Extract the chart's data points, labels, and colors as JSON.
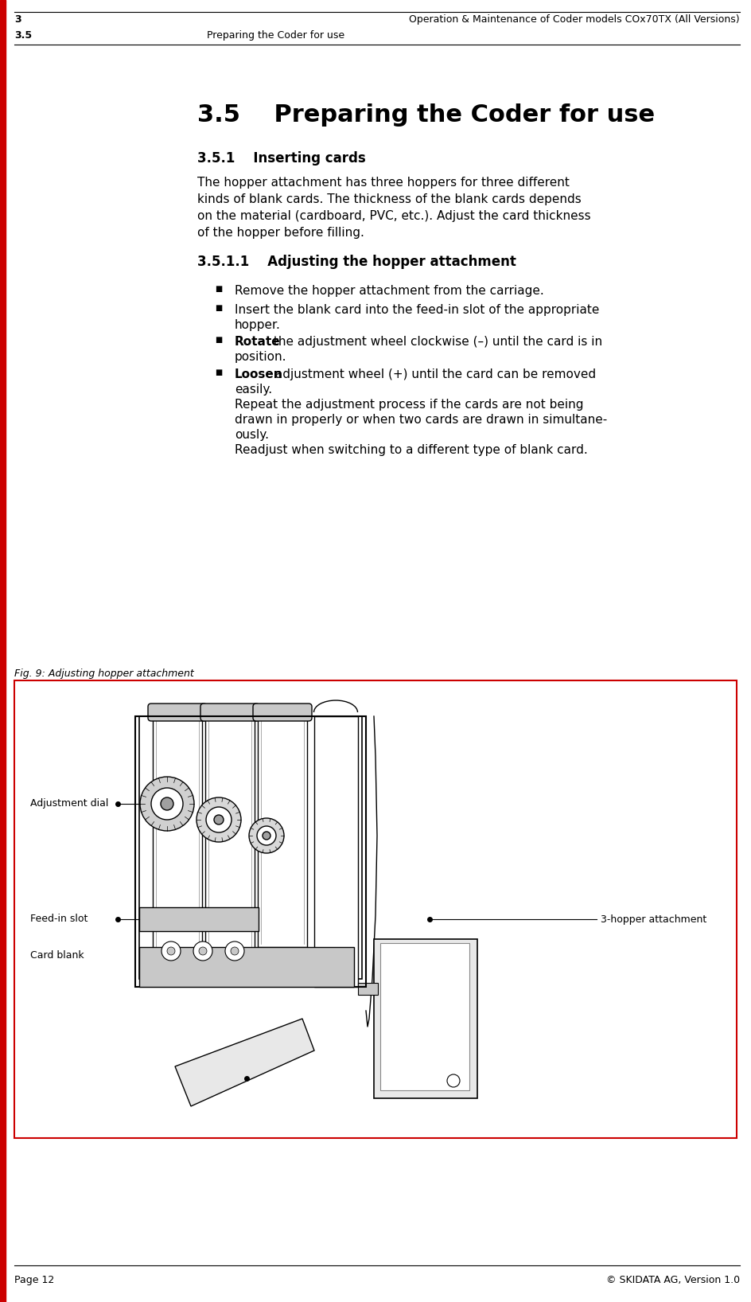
{
  "bg_color": "#ffffff",
  "header_line1_left": "3",
  "header_line1_right": "Operation & Maintenance of Coder models COx70TX (All Versions)",
  "header_line2_left": "3.5",
  "header_line2_right": "Preparing the Coder for use",
  "main_title": "3.5    Preparing the Coder for use",
  "section_351": "3.5.1    Inserting cards",
  "body_paragraph": "The hopper attachment has three hoppers for three different\nkinds of blank cards. The thickness of the blank cards depends\non the material (cardboard, PVC, etc.). Adjust the card thickness\nof the hopper before filling.",
  "section_3511": "3.5.1.1    Adjusting the hopper attachment",
  "bullet1": "Remove the hopper attachment from the carriage.",
  "bullet2_l1": "Insert the blank card into the feed-in slot of the appropriate",
  "bullet2_l2": "hopper.",
  "bullet3_bold": "Rotate",
  "bullet3_rest": " the adjustment wheel clockwise (–) until the card is in",
  "bullet3_l2": "position.",
  "bullet4_bold": "Loosen",
  "bullet4_rest": " adjustment wheel (+) until the card can be removed",
  "bullet4_l2": "easily.",
  "bullet4_l3": "Repeat the adjustment process if the cards are not being",
  "bullet4_l4": "drawn in properly or when two cards are drawn in simultane-",
  "bullet4_l5": "ously.",
  "bullet4_l6": "Readjust when switching to a different type of blank card.",
  "fig_caption": "Fig. 9: Adjusting hopper attachment",
  "label_adj_dial": "Adjustment dial",
  "label_feed_slot": "Feed-in slot",
  "label_card_blank": "Card blank",
  "label_3hopper": "3-hopper attachment",
  "footer_left": "Page 12",
  "footer_right": "© SKIDATA AG, Version 1.0",
  "red_color": "#cc0000",
  "black": "#000000",
  "white": "#ffffff",
  "light_gray": "#e8e8e8",
  "mid_gray": "#c8c8c8",
  "dark_gray": "#888888"
}
